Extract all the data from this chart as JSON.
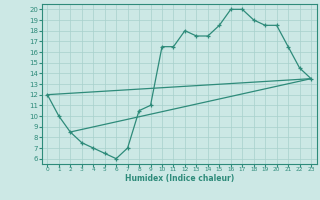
{
  "line1_x": [
    0,
    1,
    2,
    3,
    4,
    5,
    6,
    7,
    8,
    9,
    10,
    11,
    12,
    13,
    14,
    15,
    16,
    17,
    18,
    19,
    20,
    21,
    22,
    23
  ],
  "line1_y": [
    12,
    10,
    8.5,
    7.5,
    7.0,
    6.5,
    6.0,
    7.0,
    10.5,
    11.0,
    16.5,
    16.5,
    18.0,
    17.5,
    17.5,
    18.5,
    20.0,
    20.0,
    19.0,
    18.5,
    18.5,
    16.5,
    14.5,
    13.5
  ],
  "line2_x": [
    0,
    23
  ],
  "line2_y": [
    12,
    13.5
  ],
  "line3_x": [
    2,
    23
  ],
  "line3_y": [
    8.5,
    13.5
  ],
  "color": "#2e8b7a",
  "bg_color": "#cce8e5",
  "grid_color": "#a8d0cc",
  "xlabel": "Humidex (Indice chaleur)",
  "xlim": [
    -0.5,
    23.5
  ],
  "ylim": [
    5.5,
    20.5
  ],
  "yticks": [
    6,
    7,
    8,
    9,
    10,
    11,
    12,
    13,
    14,
    15,
    16,
    17,
    18,
    19,
    20
  ],
  "xticks": [
    0,
    1,
    2,
    3,
    4,
    5,
    6,
    7,
    8,
    9,
    10,
    11,
    12,
    13,
    14,
    15,
    16,
    17,
    18,
    19,
    20,
    21,
    22,
    23
  ]
}
